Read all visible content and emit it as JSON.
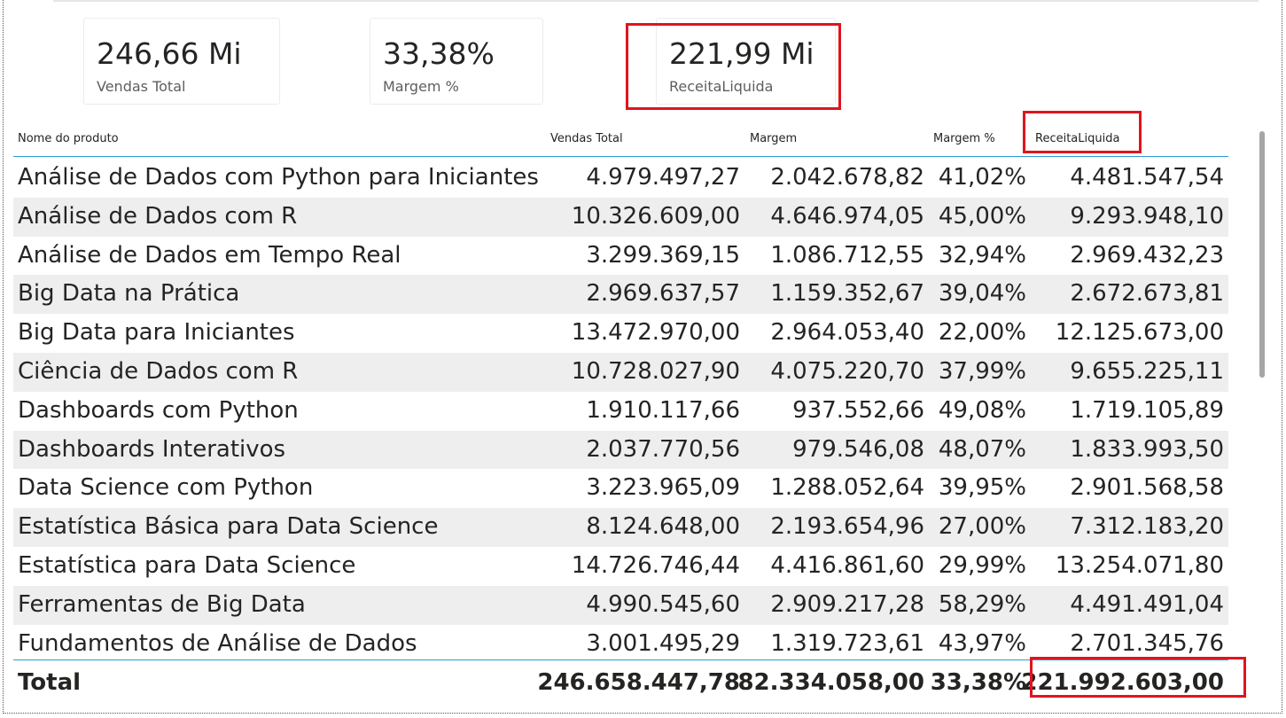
{
  "cards": [
    {
      "value": "246,66 Mi",
      "label": "Vendas Total"
    },
    {
      "value": "33,38%",
      "label": "Margem %"
    },
    {
      "value": "221,99 Mi",
      "label": "ReceitaLiquida"
    }
  ],
  "table": {
    "columns": [
      "Nome do produto",
      "Vendas Total",
      "Margem",
      "Margem %",
      "ReceitaLiquida"
    ],
    "rows": [
      [
        "Análise de Dados com Python para Iniciantes",
        "4.979.497,27",
        "2.042.678,82",
        "41,02%",
        "4.481.547,54"
      ],
      [
        "Análise de Dados com R",
        "10.326.609,00",
        "4.646.974,05",
        "45,00%",
        "9.293.948,10"
      ],
      [
        "Análise de Dados em Tempo Real",
        "3.299.369,15",
        "1.086.712,55",
        "32,94%",
        "2.969.432,23"
      ],
      [
        "Big Data na Prática",
        "2.969.637,57",
        "1.159.352,67",
        "39,04%",
        "2.672.673,81"
      ],
      [
        "Big Data para Iniciantes",
        "13.472.970,00",
        "2.964.053,40",
        "22,00%",
        "12.125.673,00"
      ],
      [
        "Ciência de Dados com R",
        "10.728.027,90",
        "4.075.220,70",
        "37,99%",
        "9.655.225,11"
      ],
      [
        "Dashboards com Python",
        "1.910.117,66",
        "937.552,66",
        "49,08%",
        "1.719.105,89"
      ],
      [
        "Dashboards Interativos",
        "2.037.770,56",
        "979.546,08",
        "48,07%",
        "1.833.993,50"
      ],
      [
        "Data Science com Python",
        "3.223.965,09",
        "1.288.052,64",
        "39,95%",
        "2.901.568,58"
      ],
      [
        "Estatística Básica para Data Science",
        "8.124.648,00",
        "2.193.654,96",
        "27,00%",
        "7.312.183,20"
      ],
      [
        "Estatística para Data Science",
        "14.726.746,44",
        "4.416.861,60",
        "29,99%",
        "13.254.071,80"
      ],
      [
        "Ferramentas de Big Data",
        "4.990.545,60",
        "2.909.217,28",
        "58,29%",
        "4.491.491,04"
      ],
      [
        "Fundamentos de Análise de Dados",
        "3.001.495,29",
        "1.319.723,61",
        "43,97%",
        "2.701.345,76"
      ]
    ],
    "total": [
      "Total",
      "246.658.447,78",
      "82.334.058,00",
      "33,38%",
      "221.992.603,00"
    ]
  },
  "colors": {
    "highlight": "#e0141e",
    "header_line": "#2d9bd6",
    "row_alt": "#eeeeee"
  }
}
